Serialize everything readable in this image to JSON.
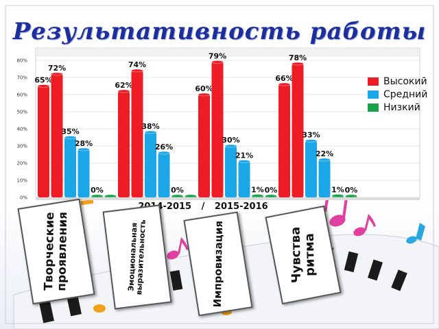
{
  "slide": {
    "title": "Результативность  работы",
    "period": {
      "from": "2014-2015",
      "separator": "/",
      "to": "2015-2016"
    }
  },
  "chart_data": {
    "type": "bar",
    "ylim": [
      0,
      80
    ],
    "yticks": [
      "0%",
      "10%",
      "20%",
      "30%",
      "40%",
      "50%",
      "60%",
      "70%",
      "80%"
    ],
    "series": [
      {
        "name": "Высокий",
        "color": "#ee1c24"
      },
      {
        "name": "Средний",
        "color": "#1ba6e8"
      },
      {
        "name": "Низкий",
        "color": "#1aa24a"
      }
    ],
    "legend_position": "right",
    "groups": [
      {
        "category": "Творческие проявления",
        "values": [
          65,
          72,
          35,
          28,
          0,
          0
        ],
        "labels": [
          "65%",
          "72%",
          "35%",
          "28%",
          "0%",
          ""
        ]
      },
      {
        "category": "Эмоциональная выразительность",
        "values": [
          62,
          74,
          38,
          26,
          0,
          0
        ],
        "labels": [
          "62%",
          "74%",
          "38%",
          "26%",
          "0%",
          ""
        ]
      },
      {
        "category": "Импровизация",
        "values": [
          60,
          79,
          30,
          21,
          1,
          0
        ],
        "labels": [
          "60%",
          "79%",
          "30%",
          "21%",
          "1%",
          "0%"
        ]
      },
      {
        "category": "Чувства ритма",
        "values": [
          66,
          78,
          33,
          22,
          1,
          0
        ],
        "labels": [
          "66%",
          "78%",
          "33%",
          "22%",
          "1%",
          "0%"
        ]
      }
    ]
  },
  "cards": [
    {
      "lines": [
        "Творческие",
        "проявления"
      ]
    },
    {
      "lines": [
        "Эмоциональная",
        "выразительность"
      ]
    },
    {
      "lines": [
        "Импровизация"
      ]
    },
    {
      "lines": [
        "Чувства",
        "ритма"
      ]
    }
  ]
}
